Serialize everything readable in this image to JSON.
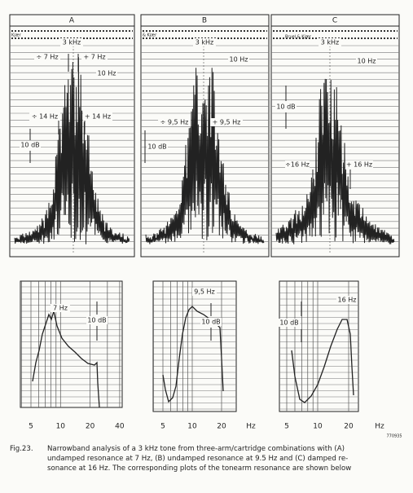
{
  "figure": {
    "top_panels": [
      {
        "label": "A",
        "brand": "Kjær",
        "annotations": [
          "3 kHz",
          "÷ 7 Hz",
          "+ 7 Hz",
          "10 Hz",
          "÷ 14 Hz",
          "+ 14 Hz",
          "10 dB"
        ]
      },
      {
        "label": "B",
        "brand": "& Kjær",
        "annotations": [
          "3 kHz",
          "10 Hz",
          "÷ 9,5 Hz",
          "+ 9,5 Hz",
          "10 dB"
        ]
      },
      {
        "label": "C",
        "brand": "Bruel & Kjær",
        "annotations": [
          "3 kHz",
          "10 Hz",
          "10 dB",
          "÷16 Hz",
          "+ 16 Hz"
        ]
      }
    ],
    "bottom_panels": [
      {
        "peak": "7 Hz",
        "scale": "10 dB",
        "ticks": [
          5,
          10,
          20,
          40
        ]
      },
      {
        "peak": "9,5 Hz",
        "scale": "10 dB",
        "ticks": [
          5,
          10,
          20,
          "Hz"
        ]
      },
      {
        "peak": "16 Hz",
        "scale": "10 dB",
        "ticks": [
          5,
          10,
          20,
          "Hz"
        ]
      }
    ],
    "code": "770935"
  },
  "caption": {
    "label": "Fig.23.",
    "lines": [
      "Narrowband analysis of a 3 kHz tone from three-arm/cartridge combinations with (A)",
      "undamped resonance at 7 Hz, (B) undamped resonance at 9.5 Hz and (C) damped re-",
      "sonance at 16 Hz. The corresponding plots of the tonearm resonance are shown below"
    ]
  }
}
